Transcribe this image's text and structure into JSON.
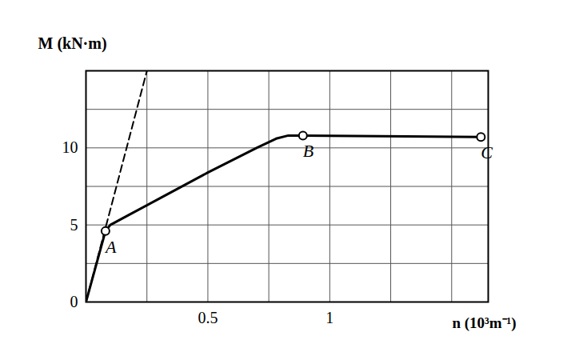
{
  "chart_data": {
    "type": "line",
    "x_label": "n (10³m⁻¹)",
    "y_label": "M (kN·m)",
    "xlim": [
      0,
      1.65
    ],
    "ylim": [
      0,
      15
    ],
    "xticks": [
      0.5,
      1.0
    ],
    "yticks": [
      0,
      5,
      10
    ],
    "grid": true,
    "series": [
      {
        "color": "#000000",
        "line_style": "solid",
        "x": [
          0,
          0.08,
          0.1,
          0.17,
          0.3,
          0.5,
          0.7,
          0.78,
          0.83,
          0.89,
          1.62
        ],
        "values": [
          0,
          4.6,
          5.0,
          5.6,
          6.7,
          8.4,
          10.0,
          10.6,
          10.8,
          10.8,
          10.7
        ]
      },
      {
        "color": "#000000",
        "line_style": "dashed",
        "x": [
          0,
          0.25
        ],
        "values": [
          0,
          15
        ]
      }
    ],
    "points": [
      {
        "label": "A",
        "x": 0.08,
        "y": 4.6
      },
      {
        "label": "B",
        "x": 0.89,
        "y": 10.8
      },
      {
        "label": "C",
        "x": 1.62,
        "y": 10.7
      }
    ]
  }
}
